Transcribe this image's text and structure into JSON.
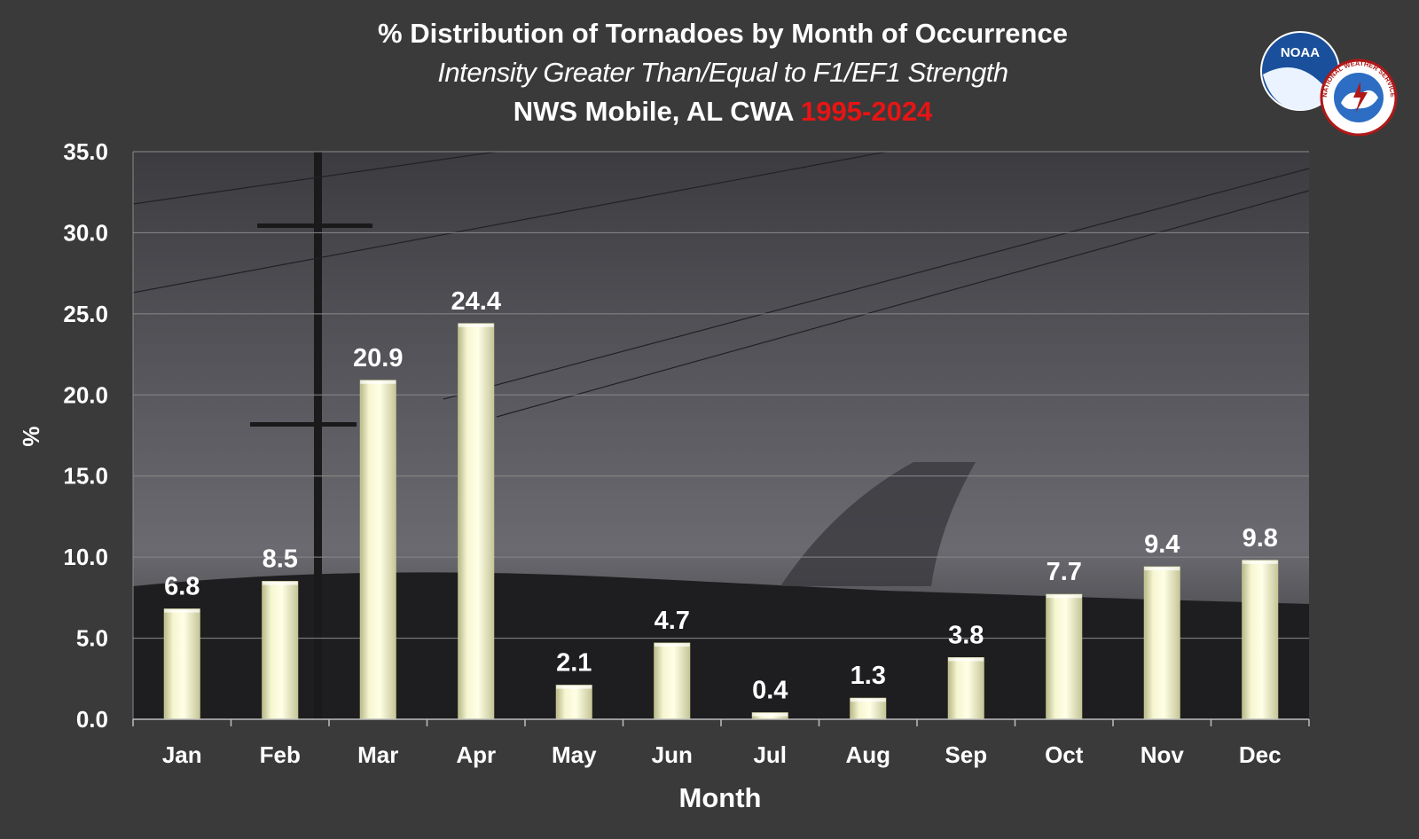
{
  "chart_data": {
    "type": "bar",
    "title": "% Distribution of Tornadoes by Month of Occurrence",
    "subtitle": "Intensity Greater Than/Equal to F1/EF1 Strength",
    "subtitle2_prefix": "NWS Mobile, AL CWA",
    "subtitle2_years": "1995-2024",
    "xlabel": "Month",
    "ylabel": "%",
    "categories": [
      "Jan",
      "Feb",
      "Mar",
      "Apr",
      "May",
      "Jun",
      "Jul",
      "Aug",
      "Sep",
      "Oct",
      "Nov",
      "Dec"
    ],
    "values": [
      6.8,
      8.5,
      20.9,
      24.4,
      2.1,
      4.7,
      0.4,
      1.3,
      3.8,
      7.7,
      9.4,
      9.8
    ],
    "data_labels": [
      "6.8",
      "8.5",
      "20.9",
      "24.4",
      "2.1",
      "4.7",
      "0.4",
      "1.3",
      "3.8",
      "7.7",
      "9.4",
      "9.8"
    ],
    "ylim": [
      0,
      35
    ],
    "yticks": [
      "0.0",
      "5.0",
      "10.0",
      "15.0",
      "20.0",
      "25.0",
      "30.0",
      "35.0"
    ],
    "grid": true,
    "legend": "none",
    "colors": {
      "bar_fill": "#f4f4c4",
      "bar_edge": "#c8c890",
      "text": "#ffffff",
      "accent_years": "#e81414",
      "page_background": "#3a3a3a",
      "grid": "#8a8a8a"
    }
  },
  "logos": {
    "noaa_text": "NOAA",
    "nws_text": "NATIONAL WEATHER SERVICE"
  }
}
